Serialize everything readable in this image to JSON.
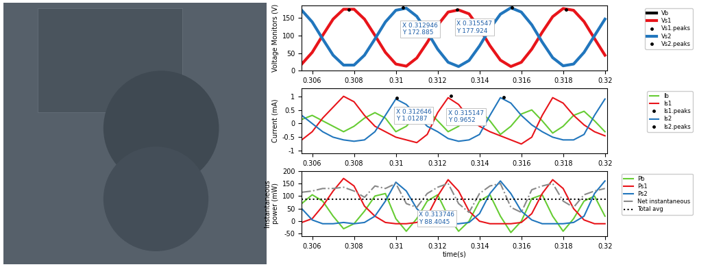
{
  "chart_data": [
    {
      "type": "line",
      "y_label": "Voltage Monitors (V)",
      "legend": "upper right",
      "grid": false,
      "xlim": [
        0.3055,
        0.3201
      ],
      "xticks": [
        0.306,
        0.308,
        0.31,
        0.312,
        0.314,
        0.316,
        0.318,
        0.32
      ],
      "ylim": [
        0,
        185
      ],
      "yticks": [
        0,
        50,
        100,
        150
      ],
      "x": [
        0.3055,
        0.306,
        0.3065,
        0.307,
        0.3075,
        0.308,
        0.3085,
        0.309,
        0.3095,
        0.31,
        0.3105,
        0.311,
        0.3115,
        0.312,
        0.3125,
        0.313,
        0.3135,
        0.314,
        0.3145,
        0.315,
        0.3155,
        0.316,
        0.3165,
        0.317,
        0.3175,
        0.318,
        0.3185,
        0.319,
        0.3195,
        0.32
      ],
      "series": [
        {
          "name": "Vb",
          "color": "#000000",
          "line_style": "solid",
          "marker": "none",
          "x": [],
          "values": []
        },
        {
          "name": "Vs1",
          "color": "#e8141a",
          "line_style": "solid",
          "marker": "none",
          "values": [
            19,
            52,
            100,
            146,
            174,
            174,
            146,
            100,
            52,
            19,
            13,
            36,
            80,
            129,
            166,
            172,
            161,
            120,
            71,
            30,
            12,
            24,
            61,
            109,
            153,
            176,
            171,
            139,
            91,
            44
          ]
        },
        {
          "name": "Vs1.peaks",
          "color": "#000000",
          "line_style": "none",
          "marker": "point",
          "x": [
            0.30775,
            0.312946,
            0.31815
          ],
          "values": [
            173,
            172.885,
            173
          ]
        },
        {
          "name": "Vs2",
          "color": "#2176bd",
          "line_style": "solid",
          "marker": "none",
          "values": [
            171,
            138,
            90,
            44,
            16,
            16,
            44,
            90,
            138,
            171,
            177,
            154,
            110,
            61,
            24,
            12,
            29,
            70,
            119,
            160,
            178,
            166,
            130,
            81,
            37,
            14,
            19,
            52,
            99,
            146
          ]
        },
        {
          "name": "Vs2.peaks",
          "color": "#000000",
          "line_style": "none",
          "marker": "point",
          "x": [
            0.310347,
            0.315547
          ],
          "values": [
            178,
            177.924
          ]
        }
      ],
      "annotations": [
        {
          "x": 0.312946,
          "y": 172.885,
          "label": "X 0.312946\nY 172.885"
        },
        {
          "x": 0.315547,
          "y": 177.924,
          "label": "X 0.315547\nY 177.924"
        }
      ]
    },
    {
      "type": "line",
      "y_label": "Current (mA)",
      "legend": "upper right",
      "grid": false,
      "xlim": [
        0.3055,
        0.3201
      ],
      "xticks": [
        0.306,
        0.308,
        0.31,
        0.312,
        0.314,
        0.316,
        0.318,
        0.32
      ],
      "ylim": [
        -1.1,
        1.3
      ],
      "yticks": [
        -1,
        -0.5,
        0,
        0.5,
        1
      ],
      "x": [
        0.3055,
        0.306,
        0.3065,
        0.307,
        0.3075,
        0.308,
        0.3085,
        0.309,
        0.3095,
        0.31,
        0.3105,
        0.311,
        0.3115,
        0.312,
        0.3125,
        0.313,
        0.3135,
        0.314,
        0.3145,
        0.315,
        0.3155,
        0.316,
        0.3165,
        0.317,
        0.3175,
        0.318,
        0.3185,
        0.319,
        0.3195,
        0.32
      ],
      "series": [
        {
          "name": "Ib",
          "color": "#66cc33",
          "line_style": "solid",
          "marker": "none",
          "values": [
            0.15,
            0.3,
            0.1,
            -0.1,
            -0.3,
            -0.1,
            0.2,
            0.4,
            0.2,
            -0.3,
            -0.1,
            0.3,
            0.5,
            0.1,
            -0.3,
            -0.1,
            0.3,
            0.5,
            0.1,
            -0.4,
            -0.1,
            0.35,
            0.5,
            0.1,
            -0.35,
            -0.1,
            0.3,
            0.45,
            0.1,
            -0.3
          ]
        },
        {
          "name": "Is1",
          "color": "#e8141a",
          "line_style": "solid",
          "marker": "none",
          "values": [
            -0.6,
            -0.3,
            0.2,
            0.6,
            1.0,
            0.8,
            0.3,
            -0.1,
            -0.3,
            -0.5,
            -0.6,
            -0.7,
            -0.4,
            0.4,
            0.95,
            0.7,
            0.2,
            -0.1,
            -0.3,
            -0.45,
            -0.6,
            -0.75,
            -0.5,
            0.3,
            0.95,
            0.75,
            0.3,
            -0.05,
            -0.3,
            -0.45
          ]
        },
        {
          "name": "Is1.peaks",
          "color": "#000000",
          "line_style": "none",
          "marker": "point",
          "x": [
            0.312646
          ],
          "values": [
            1.01287
          ]
        },
        {
          "name": "Is2",
          "color": "#2176bd",
          "line_style": "solid",
          "marker": "none",
          "values": [
            0.3,
            0.0,
            -0.3,
            -0.5,
            -0.6,
            -0.65,
            -0.6,
            -0.3,
            0.3,
            0.9,
            0.7,
            0.3,
            -0.1,
            -0.3,
            -0.55,
            -0.65,
            -0.6,
            -0.4,
            0.3,
            0.95,
            0.75,
            0.3,
            -0.05,
            -0.3,
            -0.5,
            -0.6,
            -0.6,
            -0.4,
            0.3,
            0.9
          ]
        },
        {
          "name": "Is2.peaks",
          "color": "#000000",
          "line_style": "none",
          "marker": "point",
          "x": [
            0.310047,
            0.315147
          ],
          "values": [
            0.95,
            0.9652
          ]
        }
      ],
      "annotations": [
        {
          "x": 0.312646,
          "y": 1.01287,
          "label": "X 0.312646\nY 1.01287"
        },
        {
          "x": 0.315147,
          "y": 0.9652,
          "label": "X 0.315147\nY 0.9652"
        }
      ]
    },
    {
      "type": "line",
      "y_label": "Instantaneous\npower (mW)",
      "x_label": "time(s)",
      "legend": "upper right",
      "grid": false,
      "xlim": [
        0.3055,
        0.3201
      ],
      "xticks": [
        0.306,
        0.308,
        0.31,
        0.312,
        0.314,
        0.316,
        0.318,
        0.32
      ],
      "ylim": [
        -60,
        200
      ],
      "yticks": [
        -50,
        0,
        50,
        100,
        150,
        200
      ],
      "x": [
        0.3055,
        0.306,
        0.3065,
        0.307,
        0.3075,
        0.308,
        0.3085,
        0.309,
        0.3095,
        0.31,
        0.3105,
        0.311,
        0.3115,
        0.312,
        0.3125,
        0.313,
        0.3135,
        0.314,
        0.3145,
        0.315,
        0.3155,
        0.316,
        0.3165,
        0.317,
        0.3175,
        0.318,
        0.3185,
        0.319,
        0.3195,
        0.32
      ],
      "series": [
        {
          "name": "Pb",
          "color": "#66cc33",
          "line_style": "solid",
          "marker": "none",
          "values": [
            70,
            105,
            80,
            20,
            -30,
            -10,
            40,
            100,
            110,
            10,
            -40,
            10,
            80,
            105,
            20,
            -40,
            0,
            80,
            105,
            20,
            -45,
            0,
            90,
            105,
            20,
            -40,
            10,
            80,
            100,
            20
          ]
        },
        {
          "name": "Ps1",
          "color": "#e8141a",
          "line_style": "solid",
          "marker": "none",
          "values": [
            -5,
            10,
            60,
            120,
            170,
            140,
            60,
            20,
            -5,
            -10,
            -10,
            -5,
            20,
            100,
            165,
            120,
            40,
            0,
            -10,
            -10,
            -10,
            -5,
            30,
            110,
            165,
            130,
            50,
            5,
            -10,
            -10
          ]
        },
        {
          "name": "Ps2",
          "color": "#2176bd",
          "line_style": "solid",
          "marker": "none",
          "values": [
            50,
            5,
            -10,
            -10,
            -5,
            -10,
            -5,
            20,
            80,
            155,
            120,
            50,
            10,
            -10,
            -10,
            -10,
            -5,
            30,
            110,
            160,
            110,
            40,
            5,
            -10,
            -10,
            -10,
            -5,
            20,
            110,
            160
          ]
        },
        {
          "name": "Net instantaneous",
          "color": "#888888",
          "line_style": "dashdot",
          "marker": "none",
          "values": [
            115,
            120,
            130,
            130,
            135,
            120,
            95,
            140,
            130,
            150,
            70,
            55,
            110,
            135,
            150,
            70,
            35,
            110,
            140,
            150,
            55,
            35,
            125,
            140,
            150,
            80,
            55,
            105,
            120,
            130
          ]
        },
        {
          "name": "Total avg",
          "color": "#000000",
          "line_style": "dotted",
          "marker": "none",
          "x": [
            0.3055,
            0.3201
          ],
          "values": [
            88.4045,
            88.4045
          ]
        }
      ],
      "annotations": [
        {
          "x": 0.313746,
          "y": 88.4045,
          "label": "X 0.313746\nY 88.4045"
        }
      ]
    }
  ]
}
